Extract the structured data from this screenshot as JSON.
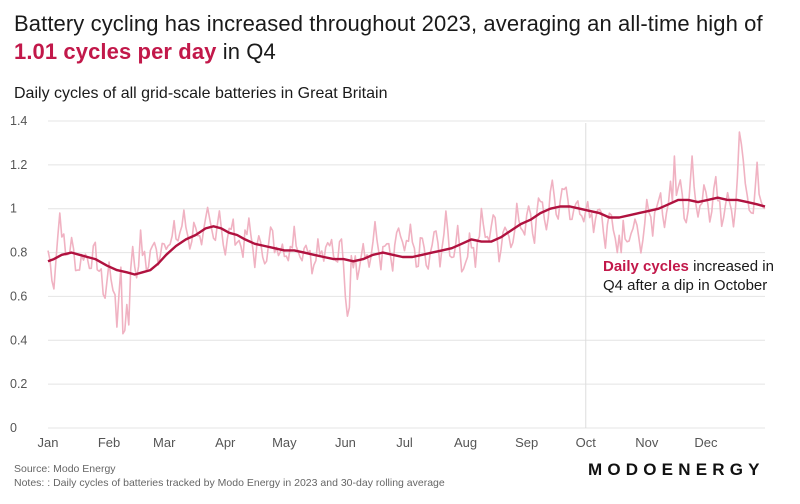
{
  "title": {
    "part1": "Battery cycling has increased throughout 2023, averaging an all-time high of ",
    "highlight": "1.01 cycles per day",
    "part2": " in Q4"
  },
  "subtitle": "Daily cycles of all grid-scale batteries in Great Britain",
  "footer": {
    "source": "Source: Modo Energy",
    "notes": "Notes: : Daily cycles of batteries tracked by Modo Energy in 2023 and 30-day rolling average",
    "brand": "MODOENERGY"
  },
  "colors": {
    "daily": "#f0b2c2",
    "average": "#b0123f",
    "highlight": "#c2184a",
    "grid": "#e4e4e4",
    "axis_text": "#555555"
  },
  "chart_data": {
    "type": "line",
    "title": "Battery cycling has increased throughout 2023, averaging an all-time high of 1.01 cycles per day in Q4",
    "subtitle": "Daily cycles of all grid-scale batteries in Great Britain",
    "xlabel": "",
    "ylabel": "",
    "ylim": [
      0,
      1.4
    ],
    "yticks": [
      0,
      0.2,
      0.4,
      0.6,
      0.8,
      1,
      1.2,
      1.4
    ],
    "ytick_labels": [
      "0",
      "0.2",
      "0.4",
      "0.6",
      "0.8",
      "1",
      "1.2",
      "1.4"
    ],
    "x_unit": "day of year 2023 (0 = Jan 1)",
    "xlim": [
      0,
      364
    ],
    "month_ticks": [
      {
        "label": "Jan",
        "day": 0
      },
      {
        "label": "Feb",
        "day": 31
      },
      {
        "label": "Mar",
        "day": 59
      },
      {
        "label": "Apr",
        "day": 90
      },
      {
        "label": "May",
        "day": 120
      },
      {
        "label": "Jun",
        "day": 151
      },
      {
        "label": "Jul",
        "day": 181
      },
      {
        "label": "Aug",
        "day": 212
      },
      {
        "label": "Sep",
        "day": 243
      },
      {
        "label": "Oct",
        "day": 273
      },
      {
        "label": "Nov",
        "day": 304
      },
      {
        "label": "Dec",
        "day": 334
      }
    ],
    "grid": true,
    "reference_line": {
      "day": 273,
      "label": "Oct"
    },
    "series": [
      {
        "name": "Daily cycles",
        "kind": "daily",
        "anchors": [
          [
            0,
            0.81
          ],
          [
            3,
            0.66
          ],
          [
            6,
            0.98
          ],
          [
            9,
            0.78
          ],
          [
            12,
            0.84
          ],
          [
            15,
            0.72
          ],
          [
            18,
            0.8
          ],
          [
            21,
            0.76
          ],
          [
            24,
            0.8
          ],
          [
            27,
            0.68
          ],
          [
            29,
            0.6
          ],
          [
            31,
            0.74
          ],
          [
            33,
            0.66
          ],
          [
            35,
            0.46
          ],
          [
            37,
            0.76
          ],
          [
            39,
            0.44
          ],
          [
            41,
            0.72
          ],
          [
            43,
            0.8
          ],
          [
            45,
            0.7
          ],
          [
            47,
            0.86
          ],
          [
            50,
            0.72
          ],
          [
            53,
            0.84
          ],
          [
            56,
            0.78
          ],
          [
            59,
            0.88
          ],
          [
            62,
            0.82
          ],
          [
            64,
            0.9
          ],
          [
            66,
            0.86
          ],
          [
            69,
            0.96
          ],
          [
            72,
            0.84
          ],
          [
            75,
            0.95
          ],
          [
            78,
            0.8
          ],
          [
            81,
            0.97
          ],
          [
            84,
            0.86
          ],
          [
            87,
            0.99
          ],
          [
            90,
            0.8
          ],
          [
            93,
            0.93
          ],
          [
            96,
            0.86
          ],
          [
            99,
            0.82
          ],
          [
            102,
            0.92
          ],
          [
            105,
            0.77
          ],
          [
            108,
            0.87
          ],
          [
            111,
            0.74
          ],
          [
            113,
            0.9
          ],
          [
            116,
            0.79
          ],
          [
            119,
            0.88
          ],
          [
            122,
            0.73
          ],
          [
            125,
            0.92
          ],
          [
            128,
            0.78
          ],
          [
            131,
            0.86
          ],
          [
            134,
            0.74
          ],
          [
            137,
            0.85
          ],
          [
            140,
            0.8
          ],
          [
            143,
            0.88
          ],
          [
            146,
            0.74
          ],
          [
            149,
            0.84
          ],
          [
            151,
            0.62
          ],
          [
            152,
            0.55
          ],
          [
            154,
            0.8
          ],
          [
            157,
            0.72
          ],
          [
            160,
            0.86
          ],
          [
            163,
            0.74
          ],
          [
            166,
            0.9
          ],
          [
            169,
            0.76
          ],
          [
            172,
            0.84
          ],
          [
            175,
            0.72
          ],
          [
            178,
            0.92
          ],
          [
            181,
            0.78
          ],
          [
            184,
            0.88
          ],
          [
            187,
            0.74
          ],
          [
            190,
            0.86
          ],
          [
            193,
            0.7
          ],
          [
            196,
            0.9
          ],
          [
            199,
            0.78
          ],
          [
            202,
            0.94
          ],
          [
            205,
            0.76
          ],
          [
            208,
            0.92
          ],
          [
            211,
            0.68
          ],
          [
            214,
            0.9
          ],
          [
            217,
            0.76
          ],
          [
            220,
            0.96
          ],
          [
            223,
            0.84
          ],
          [
            226,
            0.98
          ],
          [
            229,
            0.8
          ],
          [
            232,
            0.94
          ],
          [
            235,
            0.84
          ],
          [
            238,
            1.0
          ],
          [
            241,
            0.86
          ],
          [
            244,
            1.04
          ],
          [
            247,
            0.88
          ],
          [
            250,
            1.08
          ],
          [
            253,
            0.92
          ],
          [
            256,
            1.12
          ],
          [
            259,
            0.94
          ],
          [
            262,
            1.1
          ],
          [
            265,
            0.96
          ],
          [
            268,
            1.06
          ],
          [
            271,
            0.92
          ],
          [
            274,
            1.05
          ],
          [
            277,
            0.88
          ],
          [
            280,
            1.02
          ],
          [
            283,
            0.88
          ],
          [
            286,
            0.96
          ],
          [
            289,
            0.84
          ],
          [
            292,
            0.94
          ],
          [
            295,
            0.82
          ],
          [
            298,
            0.95
          ],
          [
            301,
            0.84
          ],
          [
            304,
            1.0
          ],
          [
            307,
            0.88
          ],
          [
            310,
            1.08
          ],
          [
            313,
            0.94
          ],
          [
            316,
            1.14
          ],
          [
            318,
            0.96
          ],
          [
            321,
            1.12
          ],
          [
            324,
            0.94
          ],
          [
            327,
            1.2
          ],
          [
            330,
            0.96
          ],
          [
            333,
            1.1
          ],
          [
            336,
            0.98
          ],
          [
            339,
            1.15
          ],
          [
            342,
            0.96
          ],
          [
            345,
            1.08
          ],
          [
            348,
            0.88
          ],
          [
            351,
            1.35
          ],
          [
            354,
            1.08
          ],
          [
            357,
            0.94
          ],
          [
            360,
            1.2
          ],
          [
            362,
            1.02
          ],
          [
            364,
            1.02
          ]
        ],
        "spike_days": [
          [
            6,
            0.98
          ],
          [
            35,
            0.46
          ],
          [
            38,
            0.43
          ],
          [
            41,
            0.47
          ],
          [
            87,
            0.99
          ],
          [
            152,
            0.51
          ],
          [
            153,
            0.55
          ],
          [
            256,
            1.13
          ],
          [
            283,
            0.82
          ],
          [
            289,
            0.8
          ],
          [
            291,
            0.8
          ],
          [
            318,
            1.24
          ],
          [
            327,
            1.24
          ],
          [
            351,
            1.35
          ]
        ]
      },
      {
        "name": "30-day rolling average",
        "kind": "rolling_average",
        "anchors": [
          [
            0,
            0.76
          ],
          [
            3,
            0.77
          ],
          [
            7,
            0.79
          ],
          [
            12,
            0.8
          ],
          [
            16,
            0.79
          ],
          [
            20,
            0.78
          ],
          [
            24,
            0.77
          ],
          [
            30,
            0.74
          ],
          [
            35,
            0.72
          ],
          [
            40,
            0.71
          ],
          [
            44,
            0.7
          ],
          [
            48,
            0.71
          ],
          [
            52,
            0.72
          ],
          [
            56,
            0.75
          ],
          [
            60,
            0.79
          ],
          [
            65,
            0.83
          ],
          [
            70,
            0.86
          ],
          [
            75,
            0.88
          ],
          [
            80,
            0.91
          ],
          [
            84,
            0.92
          ],
          [
            88,
            0.91
          ],
          [
            92,
            0.89
          ],
          [
            96,
            0.88
          ],
          [
            100,
            0.86
          ],
          [
            105,
            0.84
          ],
          [
            110,
            0.83
          ],
          [
            115,
            0.82
          ],
          [
            120,
            0.81
          ],
          [
            125,
            0.81
          ],
          [
            130,
            0.8
          ],
          [
            135,
            0.79
          ],
          [
            140,
            0.78
          ],
          [
            145,
            0.77
          ],
          [
            150,
            0.77
          ],
          [
            155,
            0.76
          ],
          [
            160,
            0.77
          ],
          [
            165,
            0.79
          ],
          [
            170,
            0.8
          ],
          [
            175,
            0.79
          ],
          [
            180,
            0.78
          ],
          [
            185,
            0.78
          ],
          [
            190,
            0.79
          ],
          [
            195,
            0.8
          ],
          [
            200,
            0.81
          ],
          [
            205,
            0.82
          ],
          [
            210,
            0.84
          ],
          [
            215,
            0.86
          ],
          [
            220,
            0.85
          ],
          [
            225,
            0.85
          ],
          [
            230,
            0.87
          ],
          [
            235,
            0.9
          ],
          [
            240,
            0.93
          ],
          [
            245,
            0.95
          ],
          [
            250,
            0.98
          ],
          [
            255,
            1.0
          ],
          [
            260,
            1.01
          ],
          [
            265,
            1.01
          ],
          [
            270,
            1.0
          ],
          [
            275,
            0.99
          ],
          [
            280,
            0.98
          ],
          [
            285,
            0.96
          ],
          [
            290,
            0.96
          ],
          [
            295,
            0.97
          ],
          [
            300,
            0.98
          ],
          [
            305,
            0.99
          ],
          [
            310,
            1.0
          ],
          [
            315,
            1.02
          ],
          [
            320,
            1.04
          ],
          [
            325,
            1.04
          ],
          [
            330,
            1.03
          ],
          [
            335,
            1.04
          ],
          [
            340,
            1.05
          ],
          [
            345,
            1.04
          ],
          [
            350,
            1.04
          ],
          [
            355,
            1.03
          ],
          [
            360,
            1.02
          ],
          [
            364,
            1.01
          ]
        ]
      }
    ],
    "annotation": {
      "highlight": "Daily cycles",
      "line1_rest": " increased in",
      "line2": "Q4 after a dip in October"
    }
  }
}
